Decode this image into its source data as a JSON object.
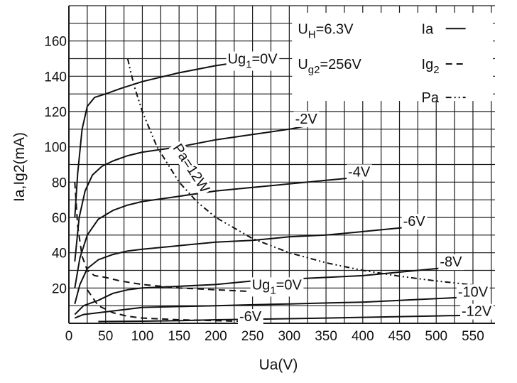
{
  "chart_data": {
    "type": "line",
    "title": "",
    "xlabel": "Ua(V)",
    "ylabel": "Ia,Ig2(mA)",
    "xlim": [
      0,
      580
    ],
    "ylim": [
      0,
      180
    ],
    "x_ticks": [
      0,
      50,
      100,
      150,
      200,
      250,
      300,
      350,
      400,
      450,
      500,
      550
    ],
    "y_ticks": [
      20,
      40,
      60,
      80,
      100,
      120,
      140,
      160
    ],
    "grid": true,
    "legend_position": "top-right",
    "legend": {
      "conditions": [
        "UH=6.3V",
        "Ug2=256V"
      ],
      "entries": [
        {
          "label": "Ia",
          "style": "solid"
        },
        {
          "label": "Ig2",
          "style": "dashed"
        },
        {
          "label": "Pa",
          "style": "dash-dot-dot"
        }
      ]
    },
    "series": [
      {
        "name": "Ug1=0V",
        "kind": "Ia",
        "style": "solid",
        "x": [
          8,
          12,
          18,
          25,
          35,
          50,
          70,
          100,
          150,
          200,
          248
        ],
        "y": [
          60,
          85,
          110,
          123,
          128,
          130,
          133,
          137,
          142,
          146,
          149
        ]
      },
      {
        "name": "-2V",
        "kind": "Ia",
        "style": "solid",
        "x": [
          8,
          14,
          22,
          32,
          45,
          60,
          80,
          100,
          150,
          200,
          250,
          300,
          325
        ],
        "y": [
          35,
          60,
          75,
          84,
          89,
          92,
          95,
          97,
          100,
          104,
          107,
          110,
          112
        ]
      },
      {
        "name": "-4V",
        "kind": "Ia",
        "style": "solid",
        "x": [
          8,
          15,
          25,
          40,
          60,
          80,
          100,
          150,
          200,
          250,
          300,
          350,
          400
        ],
        "y": [
          20,
          37,
          50,
          59,
          64,
          67,
          69,
          72,
          75,
          77,
          79,
          81,
          83
        ]
      },
      {
        "name": "-6V",
        "kind": "Ia",
        "style": "solid",
        "x": [
          8,
          15,
          25,
          40,
          60,
          80,
          100,
          150,
          200,
          250,
          300,
          350,
          400,
          450,
          470
        ],
        "y": [
          11,
          22,
          31,
          36,
          39,
          41,
          42,
          44,
          46,
          47,
          49,
          50,
          52,
          54,
          55
        ]
      },
      {
        "name": "-8V",
        "kind": "Ia",
        "style": "solid",
        "x": [
          8,
          20,
          40,
          60,
          80,
          100,
          150,
          200,
          250,
          300,
          350,
          400,
          450,
          500,
          520
        ],
        "y": [
          5,
          10,
          13,
          17,
          19,
          20,
          21,
          22,
          24,
          25,
          26,
          27,
          29,
          31,
          32
        ]
      },
      {
        "name": "-10V",
        "kind": "Ia",
        "style": "solid",
        "x": [
          8,
          20,
          40,
          60,
          80,
          100,
          150,
          200,
          250,
          300,
          350,
          400,
          450,
          500,
          550
        ],
        "y": [
          3,
          5,
          6,
          7,
          8,
          9,
          9.5,
          10,
          10.5,
          11,
          11.5,
          12,
          13,
          14,
          15
        ]
      },
      {
        "name": "-12V",
        "kind": "Ia",
        "style": "solid",
        "x": [
          40,
          100,
          150,
          200,
          250,
          300,
          350,
          400,
          450,
          500,
          550
        ],
        "y": [
          1,
          1.2,
          1.5,
          2,
          2.3,
          2.6,
          3,
          3.4,
          3.8,
          4.2,
          4.6
        ]
      },
      {
        "name": "Ug1=0V",
        "kind": "Ig2",
        "style": "dashed",
        "x": [
          8,
          12,
          18,
          25,
          35,
          50,
          70,
          100,
          150,
          200,
          250
        ],
        "y": [
          80,
          55,
          38,
          30,
          27,
          26,
          24,
          22,
          20,
          19,
          18
        ]
      },
      {
        "name": "-6V",
        "kind": "Ig2",
        "style": "dashed",
        "x": [
          25,
          40,
          60,
          80,
          100,
          150,
          200,
          250
        ],
        "y": [
          19,
          10,
          6,
          4,
          3,
          2,
          1.5,
          1
        ]
      },
      {
        "name": "Pa=12W",
        "kind": "Pa",
        "style": "dash-dot-dot",
        "x": [
          80,
          85,
          90,
          100,
          120,
          150,
          175,
          200,
          250,
          300,
          350,
          400,
          450,
          500,
          550
        ],
        "y": [
          150,
          141,
          133,
          120,
          100,
          80,
          68.6,
          60,
          48,
          40,
          34.3,
          30,
          26.7,
          24,
          21.8
        ]
      }
    ],
    "labels": [
      {
        "text": "Ug1=0V",
        "x": 250,
        "y": 150
      },
      {
        "text": "-2V",
        "x": 323,
        "y": 116
      },
      {
        "text": "-4V",
        "x": 395,
        "y": 86
      },
      {
        "text": "-6V",
        "x": 470,
        "y": 58
      },
      {
        "text": "-8V",
        "x": 520,
        "y": 35
      },
      {
        "text": "-10V",
        "x": 550,
        "y": 18
      },
      {
        "text": "-12V",
        "x": 555,
        "y": 7
      },
      {
        "text": "Ug1=0V",
        "x": 283,
        "y": 22
      },
      {
        "text": "-6V",
        "x": 247,
        "y": 4
      },
      {
        "text": "Pa=12W",
        "x": 167,
        "y": 88,
        "rotate": 57
      }
    ]
  }
}
